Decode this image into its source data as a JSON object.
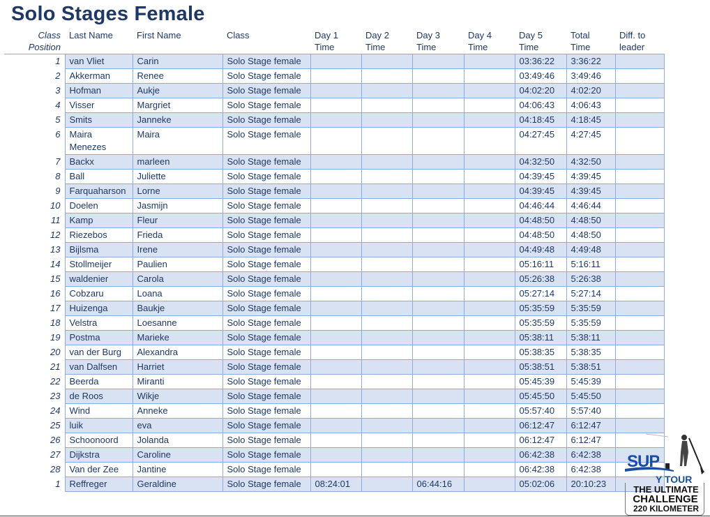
{
  "title": "Solo Stages Female",
  "headers": {
    "position": [
      "Class",
      "Position"
    ],
    "last": "Last Name",
    "first": "First Name",
    "class": "Class",
    "day1": [
      "Day 1",
      "Time"
    ],
    "day2": [
      "Day 2",
      "Time"
    ],
    "day3": [
      "Day 3",
      "Time"
    ],
    "day4": [
      "Day 4",
      "Time"
    ],
    "day5": [
      "Day 5",
      "Time"
    ],
    "total": [
      "Total",
      "Time"
    ],
    "diff": [
      "Diff. to",
      "leader"
    ]
  },
  "rows": [
    {
      "pos": "1",
      "last": "van Vliet",
      "first": "Carin",
      "cls": "Solo Stage female",
      "d1": "",
      "d2": "",
      "d3": "",
      "d4": "",
      "d5": "03:36:22",
      "total": "3:36:22",
      "diff": ""
    },
    {
      "pos": "2",
      "last": "Akkerman",
      "first": "Renee",
      "cls": "Solo Stage female",
      "d1": "",
      "d2": "",
      "d3": "",
      "d4": "",
      "d5": "03:49:46",
      "total": "3:49:46",
      "diff": ""
    },
    {
      "pos": "3",
      "last": "Hofman",
      "first": "Aukje",
      "cls": "Solo Stage female",
      "d1": "",
      "d2": "",
      "d3": "",
      "d4": "",
      "d5": "04:02:20",
      "total": "4:02:20",
      "diff": ""
    },
    {
      "pos": "4",
      "last": "Visser",
      "first": "Margriet",
      "cls": "Solo Stage female",
      "d1": "",
      "d2": "",
      "d3": "",
      "d4": "",
      "d5": "04:06:43",
      "total": "4:06:43",
      "diff": ""
    },
    {
      "pos": "5",
      "last": "Smits",
      "first": "Janneke",
      "cls": "Solo Stage female",
      "d1": "",
      "d2": "",
      "d3": "",
      "d4": "",
      "d5": "04:18:45",
      "total": "4:18:45",
      "diff": ""
    },
    {
      "pos": "6",
      "last": "Maira Menezes",
      "first": "Maira",
      "cls": "Solo Stage female",
      "d1": "",
      "d2": "",
      "d3": "",
      "d4": "",
      "d5": "04:27:45",
      "total": "4:27:45",
      "diff": ""
    },
    {
      "pos": "7",
      "last": "Backx",
      "first": "marleen",
      "cls": "Solo Stage female",
      "d1": "",
      "d2": "",
      "d3": "",
      "d4": "",
      "d5": "04:32:50",
      "total": "4:32:50",
      "diff": ""
    },
    {
      "pos": "8",
      "last": "Ball",
      "first": "Juliette",
      "cls": "Solo Stage female",
      "d1": "",
      "d2": "",
      "d3": "",
      "d4": "",
      "d5": "04:39:45",
      "total": "4:39:45",
      "diff": ""
    },
    {
      "pos": "9",
      "last": "Farquaharson",
      "first": "Lorne",
      "cls": "Solo Stage female",
      "d1": "",
      "d2": "",
      "d3": "",
      "d4": "",
      "d5": "04:39:45",
      "total": "4:39:45",
      "diff": ""
    },
    {
      "pos": "10",
      "last": "Doelen",
      "first": "Jasmijn",
      "cls": "Solo Stage female",
      "d1": "",
      "d2": "",
      "d3": "",
      "d4": "",
      "d5": "04:46:44",
      "total": "4:46:44",
      "diff": ""
    },
    {
      "pos": "11",
      "last": "Kamp",
      "first": "Fleur",
      "cls": "Solo Stage female",
      "d1": "",
      "d2": "",
      "d3": "",
      "d4": "",
      "d5": "04:48:50",
      "total": "4:48:50",
      "diff": ""
    },
    {
      "pos": "12",
      "last": "Riezebos",
      "first": "Frieda",
      "cls": "Solo Stage female",
      "d1": "",
      "d2": "",
      "d3": "",
      "d4": "",
      "d5": "04:48:50",
      "total": "4:48:50",
      "diff": ""
    },
    {
      "pos": "13",
      "last": "Bijlsma",
      "first": "Irene",
      "cls": "Solo Stage female",
      "d1": "",
      "d2": "",
      "d3": "",
      "d4": "",
      "d5": "04:49:48",
      "total": "4:49:48",
      "diff": ""
    },
    {
      "pos": "14",
      "last": "Stollmeijer",
      "first": "Paulien",
      "cls": "Solo Stage female",
      "d1": "",
      "d2": "",
      "d3": "",
      "d4": "",
      "d5": "05:16:11",
      "total": "5:16:11",
      "diff": ""
    },
    {
      "pos": "15",
      "last": "waldenier",
      "first": "Carola",
      "cls": "Solo Stage female",
      "d1": "",
      "d2": "",
      "d3": "",
      "d4": "",
      "d5": "05:26:38",
      "total": "5:26:38",
      "diff": ""
    },
    {
      "pos": "16",
      "last": "Cobzaru",
      "first": "Loana",
      "cls": "Solo Stage female",
      "d1": "",
      "d2": "",
      "d3": "",
      "d4": "",
      "d5": "05:27:14",
      "total": "5:27:14",
      "diff": ""
    },
    {
      "pos": "17",
      "last": "Huizenga",
      "first": "Baukje",
      "cls": "Solo Stage female",
      "d1": "",
      "d2": "",
      "d3": "",
      "d4": "",
      "d5": "05:35:59",
      "total": "5:35:59",
      "diff": ""
    },
    {
      "pos": "18",
      "last": "Velstra",
      "first": "Loesanne",
      "cls": "Solo Stage female",
      "d1": "",
      "d2": "",
      "d3": "",
      "d4": "",
      "d5": "05:35:59",
      "total": "5:35:59",
      "diff": ""
    },
    {
      "pos": "19",
      "last": "Postma",
      "first": "Marieke",
      "cls": "Solo Stage female",
      "d1": "",
      "d2": "",
      "d3": "",
      "d4": "",
      "d5": "05:38:11",
      "total": "5:38:11",
      "diff": ""
    },
    {
      "pos": "20",
      "last": "van der Burg",
      "first": "Alexandra",
      "cls": "Solo Stage female",
      "d1": "",
      "d2": "",
      "d3": "",
      "d4": "",
      "d5": "05:38:35",
      "total": "5:38:35",
      "diff": ""
    },
    {
      "pos": "21",
      "last": "van Dalfsen",
      "first": "Harriet",
      "cls": "Solo Stage female",
      "d1": "",
      "d2": "",
      "d3": "",
      "d4": "",
      "d5": "05:38:51",
      "total": "5:38:51",
      "diff": ""
    },
    {
      "pos": "22",
      "last": "Beerda",
      "first": "Miranti",
      "cls": "Solo Stage female",
      "d1": "",
      "d2": "",
      "d3": "",
      "d4": "",
      "d5": "05:45:39",
      "total": "5:45:39",
      "diff": ""
    },
    {
      "pos": "23",
      "last": "de Roos",
      "first": "Wikje",
      "cls": "Solo Stage female",
      "d1": "",
      "d2": "",
      "d3": "",
      "d4": "",
      "d5": "05:45:50",
      "total": "5:45:50",
      "diff": ""
    },
    {
      "pos": "24",
      "last": "Wind",
      "first": "Anneke",
      "cls": "Solo Stage female",
      "d1": "",
      "d2": "",
      "d3": "",
      "d4": "",
      "d5": "05:57:40",
      "total": "5:57:40",
      "diff": ""
    },
    {
      "pos": "25",
      "last": "luik",
      "first": "eva",
      "cls": "Solo Stage female",
      "d1": "",
      "d2": "",
      "d3": "",
      "d4": "",
      "d5": "06:12:47",
      "total": "6:12:47",
      "diff": ""
    },
    {
      "pos": "26",
      "last": "Schoonoord",
      "first": "Jolanda",
      "cls": "Solo Stage female",
      "d1": "",
      "d2": "",
      "d3": "",
      "d4": "",
      "d5": "06:12:47",
      "total": "6:12:47",
      "diff": ""
    },
    {
      "pos": "27",
      "last": "Dijkstra",
      "first": "Caroline",
      "cls": "Solo Stage female",
      "d1": "",
      "d2": "",
      "d3": "",
      "d4": "",
      "d5": "06:42:38",
      "total": "6:42:38",
      "diff": ""
    },
    {
      "pos": "28",
      "last": "Van der Zee",
      "first": "Jantine",
      "cls": "Solo Stage female",
      "d1": "",
      "d2": "",
      "d3": "",
      "d4": "",
      "d5": "06:42:38",
      "total": "6:42:38",
      "diff": ""
    },
    {
      "pos": "1",
      "last": "Reffreger",
      "first": "Geraldine",
      "cls": "Solo Stage female",
      "d1": "08:24:01",
      "d2": "",
      "d3": "06:44:16",
      "d4": "",
      "d5": "05:02:06",
      "total": "20:10:23",
      "diff": ""
    }
  ],
  "logo": {
    "sup": "SUP",
    "tour": "Y TOUR",
    "line1": "THE ULTIMATE",
    "line2": "CHALLENGE",
    "line3": "220 KILOMETER",
    "brand_blue": "#1a4fa0"
  },
  "colors": {
    "text": "#1f3864",
    "row_shade": "#d9e2f3",
    "border": "#8faadc"
  }
}
